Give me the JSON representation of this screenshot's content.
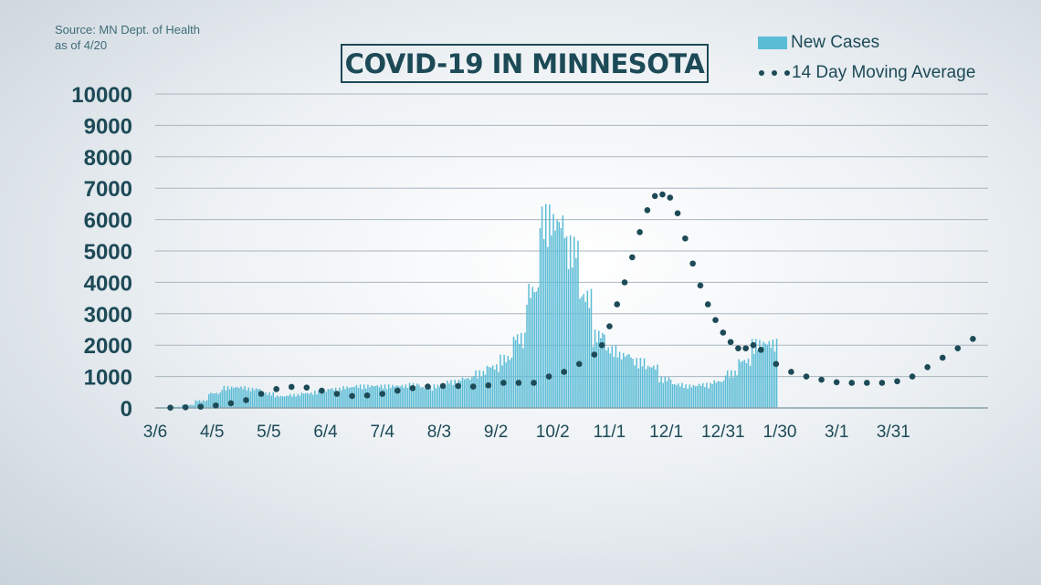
{
  "source": {
    "line1": "Source: MN Dept. of Health",
    "line2": "as of 4/20"
  },
  "chart_data": {
    "type": "bar",
    "title": "COVID-19 IN MINNESOTA",
    "xlabel": "",
    "ylabel": "",
    "ylim": [
      0,
      10000
    ],
    "yticks": [
      0,
      1000,
      2000,
      3000,
      4000,
      5000,
      6000,
      7000,
      8000,
      9000,
      10000
    ],
    "xtick_labels": [
      "3/6",
      "4/5",
      "5/5",
      "6/4",
      "7/4",
      "8/3",
      "9/2",
      "10/2",
      "11/1",
      "12/1",
      "12/31",
      "1/30",
      "3/1",
      "3/31"
    ],
    "grid": true,
    "legend_position": "top-right",
    "colors": {
      "bars": "#5bbcd6",
      "average": "#1d4a57",
      "title": "#1d4a57"
    },
    "series": [
      {
        "name": "New Cases",
        "type": "bar",
        "bin_days": 7,
        "start_date": "3/6",
        "values": [
          5,
          40,
          100,
          250,
          500,
          700,
          700,
          650,
          500,
          400,
          450,
          500,
          550,
          650,
          700,
          750,
          750,
          750,
          750,
          800,
          700,
          750,
          900,
          1000,
          1200,
          1400,
          1700,
          2400,
          4000,
          6500,
          6300,
          5500,
          3800,
          2500,
          2000,
          1800,
          1600,
          1400,
          1000,
          800,
          750,
          800,
          900,
          1200,
          1600,
          2200,
          2200
        ]
      },
      {
        "name": "14 Day Moving Average",
        "type": "dotted-line",
        "x_days": [
          8,
          16,
          24,
          32,
          40,
          48,
          56,
          64,
          72,
          80,
          88,
          96,
          104,
          112,
          120,
          128,
          136,
          144,
          152,
          160,
          168,
          176,
          184,
          192,
          200,
          208,
          216,
          224,
          232,
          236,
          240,
          244,
          248,
          252,
          256,
          260,
          264,
          268,
          272,
          276,
          280,
          284,
          288,
          292,
          296,
          300,
          304,
          308,
          312,
          316,
          320,
          328,
          336,
          344,
          352,
          360,
          368,
          376,
          384,
          392,
          400,
          408,
          416,
          424,
          432
        ],
        "values": [
          10,
          20,
          40,
          80,
          150,
          250,
          450,
          600,
          670,
          650,
          550,
          450,
          380,
          400,
          450,
          550,
          630,
          680,
          700,
          700,
          680,
          720,
          800,
          800,
          800,
          1000,
          1150,
          1400,
          1700,
          2000,
          2600,
          3300,
          4000,
          4800,
          5600,
          6300,
          6750,
          6800,
          6700,
          6200,
          5400,
          4600,
          3900,
          3300,
          2800,
          2400,
          2100,
          1900,
          1900,
          2000,
          1850,
          1400,
          1150,
          1000,
          900,
          820,
          800,
          800,
          800,
          850,
          1000,
          1300,
          1600,
          1900,
          2200
        ]
      }
    ]
  }
}
